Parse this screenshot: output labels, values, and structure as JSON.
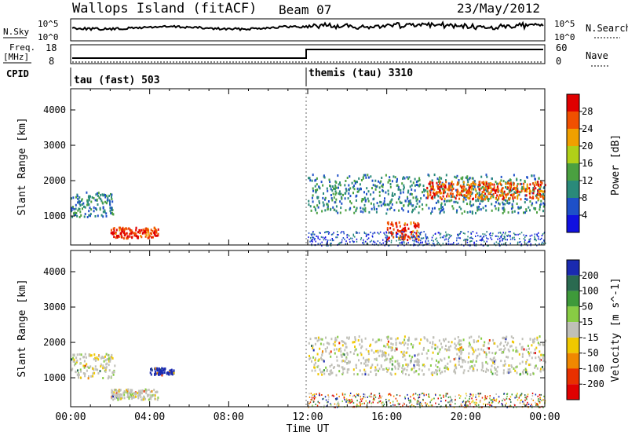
{
  "header": {
    "station": "Wallops Island (fitACF)",
    "beam": "Beam 07",
    "date": "23/May/2012"
  },
  "top_panels": {
    "nsky_label": "N.Sky",
    "nsky_ticks": [
      "10^5",
      "10^0"
    ],
    "nsearch_label": "N.Search",
    "nsearch_ticks": [
      "10^5",
      "10^0"
    ],
    "freq_label": "Freq.",
    "freq_unit": "[MHz]",
    "freq_ticks": [
      "18",
      "8"
    ],
    "nave_label": "Nave",
    "nave_ticks": [
      "60",
      "0"
    ],
    "cpid_label": "CPID",
    "cpid_segments": [
      {
        "label": "tau (fast) 503",
        "start_hour": 0
      },
      {
        "label": "themis (tau) 3310",
        "start_hour": 12
      }
    ]
  },
  "chart_data": [
    {
      "type": "heatmap",
      "title": "Power",
      "ylabel": "Slant Range [km]",
      "xlabel": "",
      "xlim": [
        0,
        24
      ],
      "ylim": [
        180,
        4600
      ],
      "yticks": [
        1000,
        2000,
        3000,
        4000
      ],
      "colorbar": {
        "label": "Power [dB]",
        "ticks": [
          4,
          8,
          12,
          16,
          20,
          24,
          28
        ],
        "colors": [
          "#1010e0",
          "#1e50c8",
          "#2a8a7a",
          "#4aa040",
          "#b0d018",
          "#f0a000",
          "#f05000",
          "#e00000"
        ]
      },
      "features": [
        {
          "t_start": 0.0,
          "t_end": 2.2,
          "range_min": 1000,
          "range_max": 1700,
          "level_db": 10
        },
        {
          "t_start": 2.0,
          "t_end": 4.4,
          "range_min": 400,
          "range_max": 700,
          "level_db": 28
        },
        {
          "t_start": 12.0,
          "t_end": 24.0,
          "range_min": 1100,
          "range_max": 2200,
          "level_db": 10
        },
        {
          "t_start": 18.0,
          "t_end": 24.0,
          "range_min": 1500,
          "range_max": 2000,
          "level_db": 26
        },
        {
          "t_start": 16.0,
          "t_end": 17.6,
          "range_min": 350,
          "range_max": 850,
          "level_db": 28
        }
      ]
    },
    {
      "type": "heatmap",
      "title": "Velocity",
      "ylabel": "Slant Range [km]",
      "xlabel": "Time UT",
      "xlim": [
        0,
        24
      ],
      "ylim": [
        180,
        4600
      ],
      "yticks": [
        1000,
        2000,
        3000,
        4000
      ],
      "xticks": [
        "00:00",
        "04:00",
        "08:00",
        "12:00",
        "16:00",
        "20:00",
        "00:00"
      ],
      "colorbar": {
        "label": "Velocity [m s^-1]",
        "ticks": [
          "200",
          "100",
          "50",
          "15",
          "-15",
          "-50",
          "-100",
          "-200"
        ],
        "colors": [
          "#1a2ab0",
          "#2a6a50",
          "#3e9a3a",
          "#88cc44",
          "#c0c0b8",
          "#f0c800",
          "#f08800",
          "#e83000",
          "#e00000"
        ]
      },
      "features": [
        {
          "t_start": 0.0,
          "t_end": 2.2,
          "range_min": 1000,
          "range_max": 1700,
          "velocity": 0
        },
        {
          "t_start": 2.0,
          "t_end": 4.4,
          "range_min": 400,
          "range_max": 700,
          "velocity": 0
        },
        {
          "t_start": 4.0,
          "t_end": 5.2,
          "range_min": 1100,
          "range_max": 1300,
          "velocity": 220
        },
        {
          "t_start": 12.0,
          "t_end": 24.0,
          "range_min": 1100,
          "range_max": 2200,
          "velocity": 0
        }
      ]
    }
  ]
}
